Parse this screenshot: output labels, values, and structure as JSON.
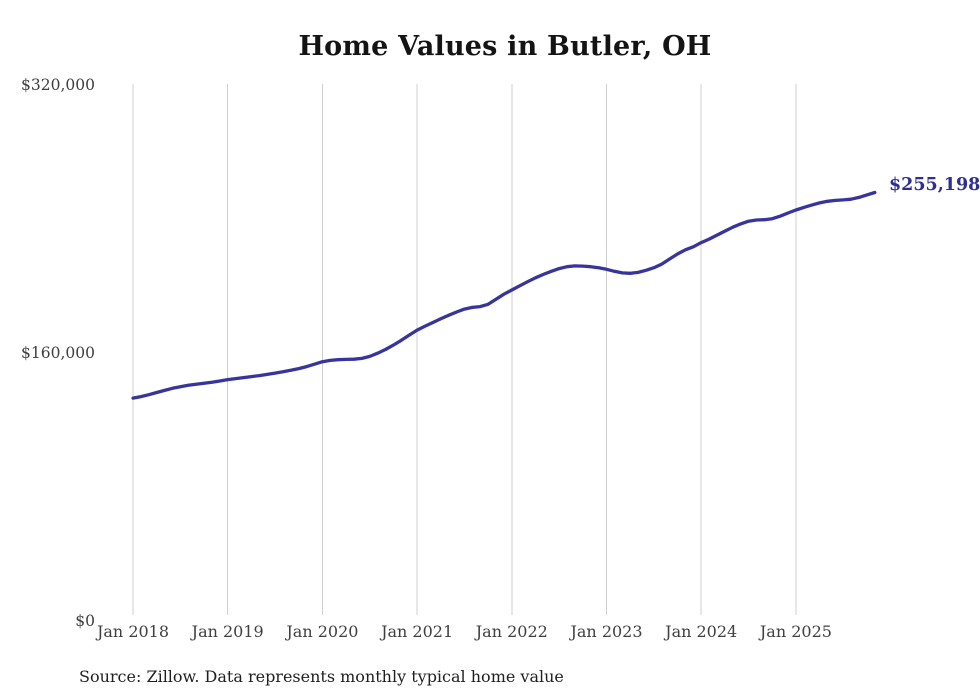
{
  "chart": {
    "title": "Home Values in Butler, OH",
    "end_label": "$255,198",
    "source": "Source: Zillow. Data represents monthly typical home value"
  },
  "chart_data": {
    "type": "line",
    "title": "Home Values in Butler, OH",
    "x_unit": "month",
    "x_range": [
      "Jan 2018",
      "Nov 2025"
    ],
    "x_tick_labels": [
      "Jan 2018",
      "Jan 2019",
      "Jan 2020",
      "Jan 2021",
      "Jan 2022",
      "Jan 2023",
      "Jan 2024",
      "Jan 2025"
    ],
    "y_ticks": [
      {
        "label": "$0",
        "value": 0
      },
      {
        "label": "$160,000",
        "value": 160000
      },
      {
        "label": "$320,000",
        "value": 320000
      }
    ],
    "ylim": [
      0,
      320000
    ],
    "grid": "vertical-only",
    "legend": "none",
    "series": [
      {
        "name": "Monthly typical home value",
        "values": [
          132500,
          133400,
          134500,
          135800,
          137100,
          138300,
          139300,
          140100,
          140700,
          141300,
          141900,
          142700,
          143500,
          144100,
          144700,
          145300,
          145900,
          146600,
          147400,
          148200,
          149100,
          150100,
          151300,
          152700,
          154200,
          155000,
          155400,
          155600,
          155700,
          156200,
          157400,
          159300,
          161500,
          164100,
          167000,
          170100,
          173100,
          175400,
          177600,
          179800,
          181900,
          183900,
          185600,
          186600,
          187100,
          188500,
          191500,
          194500,
          197000,
          199500,
          202000,
          204300,
          206300,
          208200,
          209800,
          210900,
          211400,
          211300,
          210900,
          210300,
          209400,
          208200,
          207200,
          207000,
          207500,
          208800,
          210300,
          212500,
          215500,
          218500,
          221000,
          222800,
          225300,
          227400,
          229800,
          232200,
          234500,
          236500,
          238100,
          238800,
          239000,
          239600,
          241100,
          243000,
          244800,
          246300,
          247700,
          249000,
          250000,
          250500,
          250800,
          251200,
          252300,
          253800,
          255198
        ]
      }
    ],
    "end_annotation": {
      "text": "$255,198",
      "value": 255198
    },
    "source": "Source: Zillow. Data represents monthly typical home value"
  },
  "colors": {
    "line": "#37349e",
    "annotation": "#2e2d92",
    "gridline": "#cfcfcf",
    "title_text": "#141414",
    "axis_text": "#3f3f3f",
    "source_text": "#1f1f1f",
    "background": "#ffffff"
  }
}
